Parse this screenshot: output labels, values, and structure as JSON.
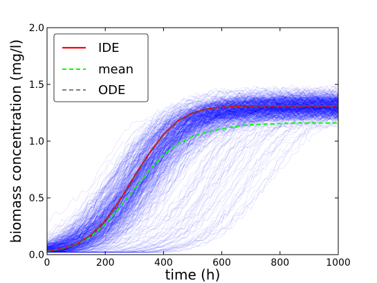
{
  "chart_data": {
    "type": "line",
    "xlabel": "time (h)",
    "ylabel": "biomass concentration (mg/l)",
    "xlim": [
      0,
      1000
    ],
    "ylim": [
      0.0,
      2.0
    ],
    "xticks": [
      "0",
      "200",
      "400",
      "600",
      "800",
      "1000"
    ],
    "yticks": [
      "0.0",
      "0.5",
      "1.0",
      "1.5",
      "2.0"
    ],
    "grid": false,
    "legend_position": "top-left",
    "x": [
      0,
      50,
      100,
      150,
      200,
      250,
      300,
      350,
      400,
      450,
      500,
      550,
      600,
      650,
      700,
      750,
      800,
      850,
      900,
      950,
      1000
    ],
    "series": [
      {
        "name": "IDE",
        "color": "#ff0000",
        "style": "solid",
        "values": [
          0.03,
          0.05,
          0.09,
          0.17,
          0.3,
          0.48,
          0.69,
          0.89,
          1.06,
          1.18,
          1.25,
          1.285,
          1.3,
          1.305,
          1.31,
          1.31,
          1.31,
          1.31,
          1.31,
          1.31,
          1.31
        ]
      },
      {
        "name": "mean",
        "color": "#00ff00",
        "style": "dashed",
        "values": [
          0.03,
          0.05,
          0.09,
          0.16,
          0.27,
          0.42,
          0.58,
          0.74,
          0.88,
          0.98,
          1.04,
          1.08,
          1.11,
          1.13,
          1.145,
          1.15,
          1.155,
          1.16,
          1.16,
          1.16,
          1.16
        ]
      },
      {
        "name": "ODE",
        "color": "#555555",
        "style": "dashed",
        "values": [
          0.03,
          0.05,
          0.09,
          0.17,
          0.3,
          0.48,
          0.69,
          0.89,
          1.06,
          1.18,
          1.25,
          1.285,
          1.3,
          1.305,
          1.31,
          1.31,
          1.31,
          1.31,
          1.31,
          1.31,
          1.31
        ]
      }
    ],
    "stochastic_realizations": {
      "color": "#0000ff",
      "plateau_range": [
        1.15,
        1.55
      ],
      "plateau_center": 1.31
    }
  }
}
